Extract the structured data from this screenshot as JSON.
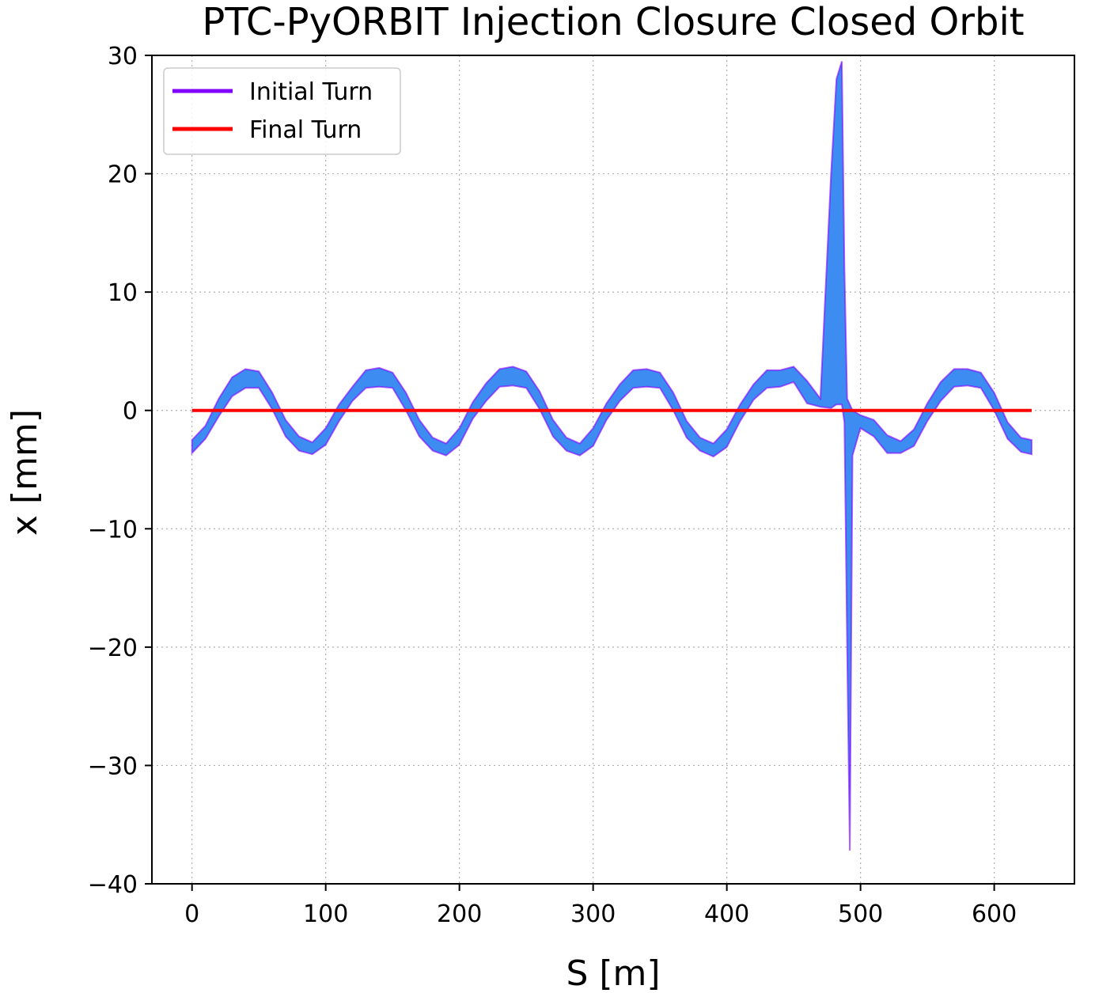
{
  "chart_data": {
    "type": "line",
    "title": "PTC-PyORBIT Injection Closure Closed Orbit",
    "xlabel": "S [m]",
    "ylabel": "x [mm]",
    "xlim": [
      -30,
      660
    ],
    "ylim": [
      -40,
      30
    ],
    "xticks": [
      0,
      100,
      200,
      300,
      400,
      500,
      600
    ],
    "yticks": [
      -40,
      -30,
      -20,
      -10,
      0,
      10,
      20,
      30
    ],
    "xtick_labels": [
      "0",
      "100",
      "200",
      "300",
      "400",
      "500",
      "600"
    ],
    "ytick_labels": [
      "−40",
      "−30",
      "−20",
      "−10",
      "0",
      "10",
      "20",
      "30"
    ],
    "grid": true,
    "legend_position": "top-left",
    "legend": [
      {
        "label": "Initial Turn",
        "color": "#8000ff"
      },
      {
        "label": "Final Turn",
        "color": "#ff0000"
      }
    ],
    "colors": {
      "initial": "#8000ff",
      "band": "#3d8cf2",
      "last_band": "#14a5e8",
      "final": "#ff0000"
    },
    "band_envelope": {
      "s": [
        0,
        10,
        20,
        30,
        40,
        50,
        60,
        70,
        80,
        90,
        100,
        110,
        120,
        130,
        140,
        150,
        160,
        170,
        180,
        190,
        200,
        210,
        220,
        230,
        240,
        250,
        260,
        270,
        280,
        290,
        300,
        310,
        320,
        330,
        340,
        350,
        360,
        370,
        380,
        390,
        400,
        410,
        420,
        430,
        440,
        450,
        460,
        470,
        478,
        482,
        486,
        488,
        490,
        492,
        494,
        500,
        510,
        520,
        530,
        540,
        550,
        560,
        570,
        580,
        590,
        600,
        610,
        620,
        628
      ],
      "x_max": [
        -2.5,
        -1.3,
        1.0,
        2.8,
        3.5,
        3.3,
        1.5,
        -0.8,
        -2.2,
        -2.7,
        -1.5,
        0.5,
        2.0,
        3.4,
        3.6,
        3.2,
        1.5,
        -0.8,
        -2.3,
        -2.8,
        -1.5,
        0.7,
        2.3,
        3.5,
        3.7,
        3.3,
        1.6,
        -0.8,
        -2.3,
        -2.8,
        -1.5,
        0.6,
        2.2,
        3.4,
        3.5,
        3.2,
        1.5,
        -0.9,
        -2.3,
        -2.8,
        -1.6,
        0.5,
        2.2,
        3.4,
        3.4,
        3.7,
        2.5,
        1.0,
        20.0,
        28.0,
        29.5,
        12.0,
        1.0,
        0.5,
        0.0,
        -0.4,
        -0.8,
        -2.1,
        -2.6,
        -1.6,
        0.6,
        2.4,
        3.5,
        3.5,
        3.2,
        1.5,
        -1.0,
        -2.3,
        -2.5
      ],
      "x_min": [
        -3.6,
        -2.4,
        -0.5,
        1.2,
        1.9,
        1.9,
        0.1,
        -2.2,
        -3.4,
        -3.7,
        -2.9,
        -0.9,
        0.8,
        1.9,
        2.0,
        1.9,
        0.0,
        -2.2,
        -3.4,
        -3.8,
        -2.9,
        -0.7,
        0.8,
        2.0,
        2.1,
        1.9,
        0.1,
        -2.2,
        -3.4,
        -3.8,
        -3.0,
        -0.8,
        0.8,
        1.9,
        2.0,
        1.9,
        0.0,
        -2.3,
        -3.4,
        -3.9,
        -3.1,
        -0.9,
        0.9,
        1.9,
        2.0,
        2.4,
        0.6,
        0.3,
        0.2,
        0.5,
        0.5,
        -1.0,
        -20.0,
        -37.2,
        -3.8,
        -1.5,
        -2.2,
        -3.6,
        -3.6,
        -3.0,
        -0.9,
        0.8,
        2.0,
        2.1,
        1.9,
        0.0,
        -2.4,
        -3.5,
        -3.7
      ]
    },
    "series": [
      {
        "name": "Initial Turn",
        "x": [
          0,
          628
        ],
        "y": [
          0,
          0
        ]
      },
      {
        "name": "Final Turn",
        "x": [
          0,
          628
        ],
        "y": [
          0,
          0
        ]
      }
    ]
  }
}
